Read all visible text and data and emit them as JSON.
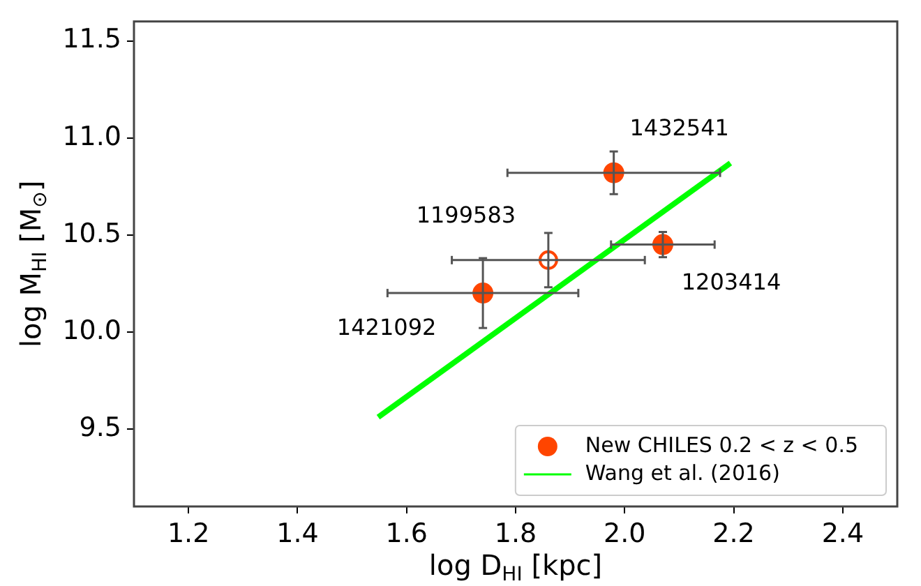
{
  "chart_data": {
    "type": "scatter",
    "xlabel": "log D$_{HI}$ [kpc]",
    "ylabel": "log M$_{HI}$ [M$_{⊙}$]",
    "xlim": [
      1.1,
      2.5
    ],
    "xticks": [
      1.2,
      1.4,
      1.6,
      1.8,
      {
        "value": 2,
        "label": "2.0"
      },
      2.2,
      2.4
    ],
    "ylim": [
      9.1,
      11.6
    ],
    "yticks": [
      9.5,
      {
        "value": 10,
        "label": "10.0"
      },
      10.5,
      {
        "value": 11,
        "label": "11.0"
      },
      11.5
    ],
    "grid": false,
    "legend": "bottom right",
    "series": [
      {
        "name": "New CHILES 0.2 < z < 0.5",
        "marker": "circle",
        "color": "#ff4500",
        "x": [
          1.74,
          1.98,
          2.07
        ],
        "values": [
          10.2,
          10.82,
          10.45
        ],
        "errors": [
          0.18,
          0.11,
          0.065
        ],
        "xerrors": [
          0.175,
          0.195,
          0.095
        ]
      },
      {
        "marker": "circle",
        "color": "#ff4500",
        "x": [
          1.86
        ],
        "values": [
          10.37
        ],
        "errors": [
          0.14
        ],
        "xerrors": [
          0.177
        ]
      },
      {
        "name": "Wang et al. (2016)",
        "type": "line",
        "color": "#00ff00",
        "x": [
          1.548,
          2.194
        ],
        "values": [
          9.56,
          10.87
        ]
      }
    ],
    "annotations": [
      {
        "text": "1432541",
        "x": 1.98,
        "y": 10.82
      },
      {
        "text": "1199583",
        "x": 1.86,
        "y": 10.37
      },
      {
        "text": "1203414",
        "x": 2.07,
        "y": 10.45
      },
      {
        "text": "1421092",
        "x": 1.74,
        "y": 10.2
      }
    ]
  }
}
